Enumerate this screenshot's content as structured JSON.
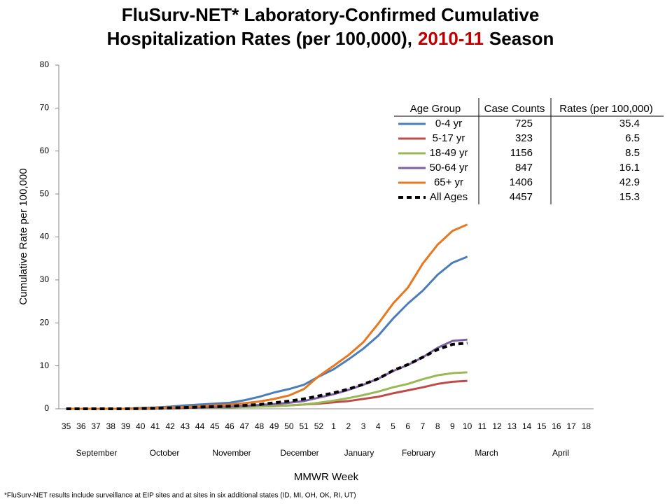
{
  "chart_data": {
    "type": "line",
    "title": [
      "FluSurv-NET* Laboratory-Confirmed Cumulative",
      "Hospitalization Rates (per 100,000),",
      "2010-11",
      "Season"
    ],
    "title_highlight_color": "#c00000",
    "x_label": "MMWR Week",
    "y_label": "Cumulative Rate per 100,000",
    "footnote": "*FluSurv-NET results include surveillance at EIP sites and at sites in six additional states (ID, MI, OH, OK, RI, UT)",
    "months": [
      "September",
      "October",
      "November",
      "December",
      "January",
      "February",
      "March",
      "April"
    ],
    "categories": [
      "35",
      "36",
      "37",
      "38",
      "39",
      "40",
      "41",
      "42",
      "43",
      "44",
      "45",
      "46",
      "47",
      "48",
      "49",
      "50",
      "51",
      "52",
      "1",
      "2",
      "3",
      "4",
      "5",
      "6",
      "7",
      "8",
      "9",
      "10",
      "11",
      "12",
      "13",
      "14",
      "15",
      "16",
      "17",
      "18"
    ],
    "ylim": [
      0,
      80
    ],
    "yticks": [
      0,
      10,
      20,
      30,
      40,
      50,
      60,
      70,
      80
    ],
    "grid": false,
    "series": [
      {
        "name": "0-4 yr",
        "color": "#4a7ebb",
        "values": [
          0,
          0,
          0,
          0,
          0,
          0.2,
          0.3,
          0.5,
          0.8,
          1.0,
          1.2,
          1.4,
          2.0,
          2.8,
          3.8,
          4.6,
          5.6,
          7.5,
          9.2,
          11.5,
          14,
          17,
          21,
          24.5,
          27.5,
          31.2,
          34,
          35.4,
          null,
          null,
          null,
          null,
          null,
          null,
          null,
          null
        ]
      },
      {
        "name": "5-17 yr",
        "color": "#be4b48",
        "values": [
          0,
          0,
          0,
          0,
          0,
          0,
          0.05,
          0.1,
          0.15,
          0.2,
          0.3,
          0.35,
          0.45,
          0.55,
          0.7,
          0.8,
          1.0,
          1.2,
          1.5,
          1.8,
          2.3,
          2.8,
          3.6,
          4.3,
          5.0,
          5.8,
          6.3,
          6.5,
          null,
          null,
          null,
          null,
          null,
          null,
          null,
          null
        ]
      },
      {
        "name": "18-49 yr",
        "color": "#98b954",
        "values": [
          0,
          0,
          0,
          0,
          0,
          0,
          0.05,
          0.1,
          0.15,
          0.2,
          0.3,
          0.35,
          0.4,
          0.5,
          0.6,
          0.8,
          1.0,
          1.4,
          1.9,
          2.5,
          3.2,
          4.0,
          5.0,
          5.8,
          6.9,
          7.8,
          8.3,
          8.5,
          null,
          null,
          null,
          null,
          null,
          null,
          null,
          null
        ]
      },
      {
        "name": "50-64 yr",
        "color": "#7d60a0",
        "values": [
          0,
          0,
          0,
          0,
          0,
          0,
          0.1,
          0.1,
          0.2,
          0.3,
          0.4,
          0.5,
          0.7,
          0.9,
          1.1,
          1.4,
          1.8,
          2.6,
          3.4,
          4.4,
          5.6,
          7.0,
          8.8,
          10.2,
          12.0,
          14.2,
          15.8,
          16.1,
          null,
          null,
          null,
          null,
          null,
          null,
          null,
          null
        ]
      },
      {
        "name": "65+ yr",
        "color": "#e8771e",
        "values": [
          0,
          0,
          0,
          0,
          0,
          0.1,
          0.2,
          0.3,
          0.4,
          0.6,
          0.8,
          1.0,
          1.3,
          1.7,
          2.3,
          3.1,
          4.6,
          7.6,
          10,
          12.5,
          15.5,
          19.8,
          24.5,
          28.2,
          33.8,
          38.2,
          41.4,
          42.9,
          null,
          null,
          null,
          null,
          null,
          null,
          null,
          null
        ]
      },
      {
        "name": "All Ages",
        "color": "#000000",
        "line_style": "dashed",
        "values": [
          0,
          0,
          0,
          0,
          0,
          0.05,
          0.1,
          0.2,
          0.3,
          0.4,
          0.5,
          0.6,
          0.8,
          1.0,
          1.4,
          1.8,
          2.3,
          3.0,
          3.7,
          4.6,
          5.7,
          7.0,
          8.9,
          10.3,
          12.0,
          13.8,
          15.0,
          15.3,
          null,
          null,
          null,
          null,
          null,
          null,
          null,
          null
        ]
      }
    ],
    "table": {
      "columns": [
        "Age Group",
        "Case Counts",
        "Rates (per 100,000)"
      ],
      "case_counts": [
        725,
        323,
        1156,
        847,
        1406,
        4457
      ],
      "rates": [
        35.4,
        6.5,
        8.5,
        16.1,
        42.9,
        15.3
      ]
    }
  }
}
